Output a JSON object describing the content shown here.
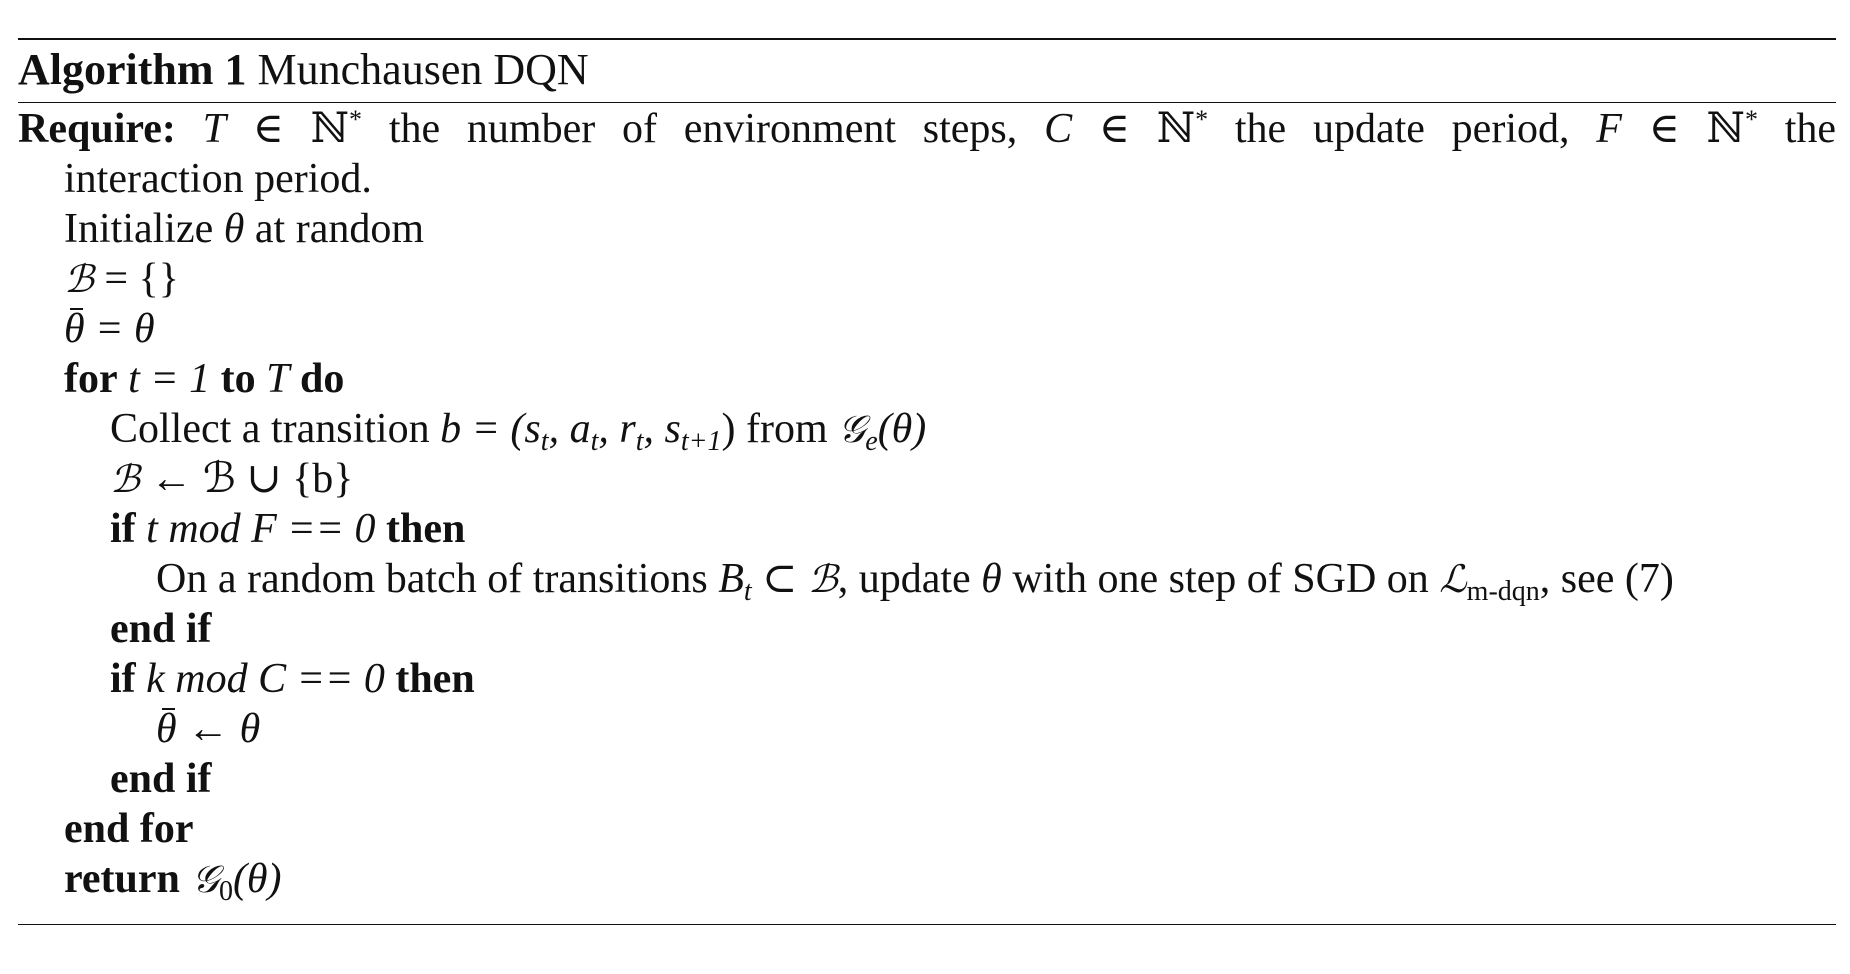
{
  "caption": {
    "label": "Algorithm 1",
    "title": "Munchausen DQN"
  },
  "require": {
    "keyword": "Require:",
    "part1_var": "T",
    "part1_text": " the number of environment steps, ",
    "part2_var": "C",
    "part2_text": " the update period, ",
    "part3_var": "F",
    "part3_text": " the",
    "continuation": "interaction period."
  },
  "lines": {
    "init_text": "Initialize ",
    "init_var": "θ",
    "init_tail": " at random",
    "buffer_init": "= {}",
    "target_init": "= θ",
    "for_kw": "for",
    "for_expr": "t = 1",
    "to_kw": "to",
    "for_var": "T",
    "do_kw": "do",
    "collect_text": "Collect a transition ",
    "collect_expr": "b = (s",
    "from_text": " from ",
    "buffer_update": "← ℬ ∪ {b}",
    "if_kw": "if",
    "if1_expr": "t  mod F == 0",
    "then_kw": "then",
    "sgd_text_1": "On a random batch of transitions ",
    "sgd_text_2": ", update ",
    "sgd_text_3": " with one step of SGD on ",
    "loss_sub": "m-dqn",
    "sgd_text_4": ", see (7)",
    "end_if_kw": "end if",
    "if2_expr": "k  mod C == 0",
    "target_update": "← θ",
    "end_for_kw": "end for",
    "return_kw": "return",
    "return_sub": "0",
    "return_arg": "(θ)"
  }
}
